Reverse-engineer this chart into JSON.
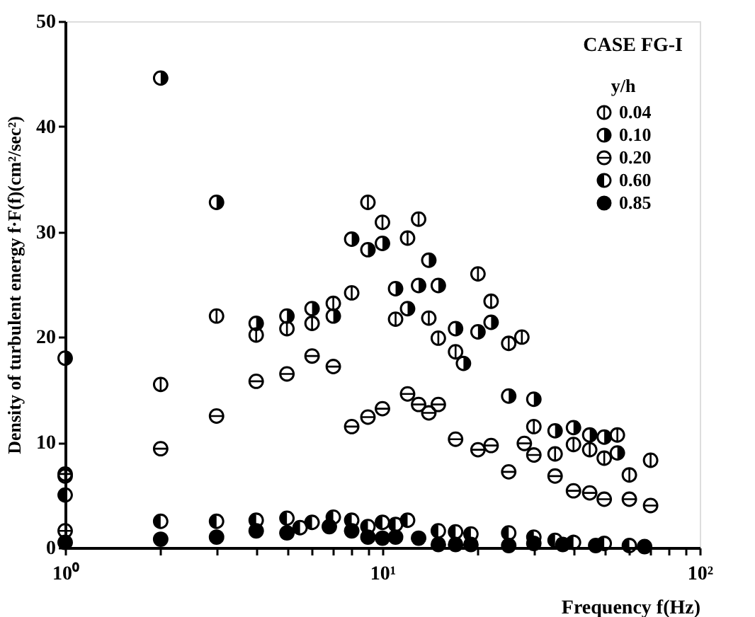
{
  "chart_data": {
    "type": "scatter",
    "xlabel": "Frequency f(Hz)",
    "ylabel": "Density of turbulent energy f·F(f)(cm²/sec²)",
    "legend_title": "y/h",
    "annotations": [
      "CASE FG-I"
    ],
    "log": "x",
    "xlim": [
      1,
      100
    ],
    "xticks": [
      {
        "value": 1,
        "label": "10⁰"
      },
      {
        "value": 2,
        "label": null
      },
      {
        "value": 3,
        "label": null
      },
      {
        "value": 4,
        "label": null
      },
      {
        "value": 5,
        "label": null
      },
      {
        "value": 6,
        "label": null
      },
      {
        "value": 7,
        "label": null
      },
      {
        "value": 8,
        "label": null
      },
      {
        "value": 9,
        "label": null
      },
      {
        "value": 10,
        "label": "10¹"
      },
      {
        "value": 20,
        "label": null
      },
      {
        "value": 30,
        "label": null
      },
      {
        "value": 40,
        "label": null
      },
      {
        "value": 50,
        "label": null
      },
      {
        "value": 60,
        "label": null
      },
      {
        "value": 70,
        "label": null
      },
      {
        "value": 80,
        "label": null
      },
      {
        "value": 90,
        "label": null
      },
      {
        "value": 100,
        "label": "10²"
      }
    ],
    "ylim": [
      0,
      50
    ],
    "yticks": [
      0,
      10,
      20,
      30,
      40,
      50
    ],
    "grid": false,
    "legend": "top right",
    "series": [
      {
        "name": "0.04",
        "color": "#000000",
        "x": [
          1,
          2,
          3,
          4,
          5,
          6,
          7,
          8,
          9,
          10,
          11,
          12,
          13,
          14,
          15,
          17,
          20,
          22,
          25,
          27.5,
          30,
          35,
          40,
          45,
          50,
          55,
          60,
          70
        ],
        "values": [
          6.8,
          15.5,
          22,
          20.2,
          20.8,
          21.3,
          23.2,
          24.2,
          32.8,
          30.9,
          21.7,
          29.4,
          31.2,
          21.8,
          19.9,
          18.6,
          26,
          23.4,
          19.4,
          20,
          11.5,
          8.9,
          9.8,
          9.3,
          8.5,
          10.7,
          6.9,
          8.3
        ]
      },
      {
        "name": "0.10",
        "color": "#000000",
        "x": [
          1,
          2,
          3,
          4,
          5,
          6,
          7,
          8,
          9,
          10,
          11,
          12,
          13,
          14,
          15,
          17,
          18,
          20,
          22,
          25,
          30,
          35,
          40,
          45,
          50,
          55
        ],
        "values": [
          18,
          44.6,
          32.8,
          21.3,
          22,
          22.7,
          22,
          29.3,
          28.3,
          28.9,
          24.6,
          22.7,
          24.9,
          27.3,
          24.9,
          20.8,
          17.5,
          20.5,
          21.4,
          14.4,
          14.1,
          11.1,
          11.4,
          10.7,
          10.5,
          9
        ]
      },
      {
        "name": "0.20",
        "color": "#000000",
        "x": [
          1,
          1,
          2,
          3,
          4,
          5,
          6,
          7,
          8,
          9,
          10,
          12,
          13,
          14,
          15,
          17,
          20,
          22,
          25,
          28,
          30,
          35,
          40,
          45,
          50,
          60,
          70
        ],
        "values": [
          7,
          1.6,
          9.4,
          12.5,
          15.8,
          16.5,
          18.2,
          17.2,
          11.5,
          12.4,
          13.2,
          14.6,
          13.6,
          12.8,
          13.6,
          10.3,
          9.3,
          9.7,
          7.2,
          9.9,
          8.8,
          6.8,
          5.4,
          5.2,
          4.6,
          4.6,
          4
        ]
      },
      {
        "name": "0.60",
        "color": "#000000",
        "x": [
          1,
          2,
          3,
          4,
          5,
          5.5,
          6,
          7,
          8,
          9,
          10,
          11,
          12,
          15,
          17,
          19,
          25,
          30,
          35,
          40,
          50,
          60
        ],
        "values": [
          5,
          2.5,
          2.5,
          2.6,
          2.8,
          1.9,
          2.4,
          2.9,
          2.6,
          2,
          2.4,
          2.2,
          2.6,
          1.6,
          1.5,
          1.3,
          1.4,
          1,
          0.7,
          0.5,
          0.4,
          0.2
        ]
      },
      {
        "name": "0.85",
        "color": "#000000",
        "x": [
          1,
          2,
          3,
          4,
          5,
          6.8,
          8,
          9,
          10,
          11,
          13,
          15,
          17,
          19,
          25,
          30,
          37,
          47,
          67
        ],
        "values": [
          0.5,
          0.8,
          1,
          1.6,
          1.4,
          2,
          1.6,
          1,
          0.9,
          1,
          0.9,
          0.3,
          0.3,
          0.3,
          0.2,
          0.4,
          0.3,
          0.2,
          0.1
        ]
      }
    ]
  }
}
